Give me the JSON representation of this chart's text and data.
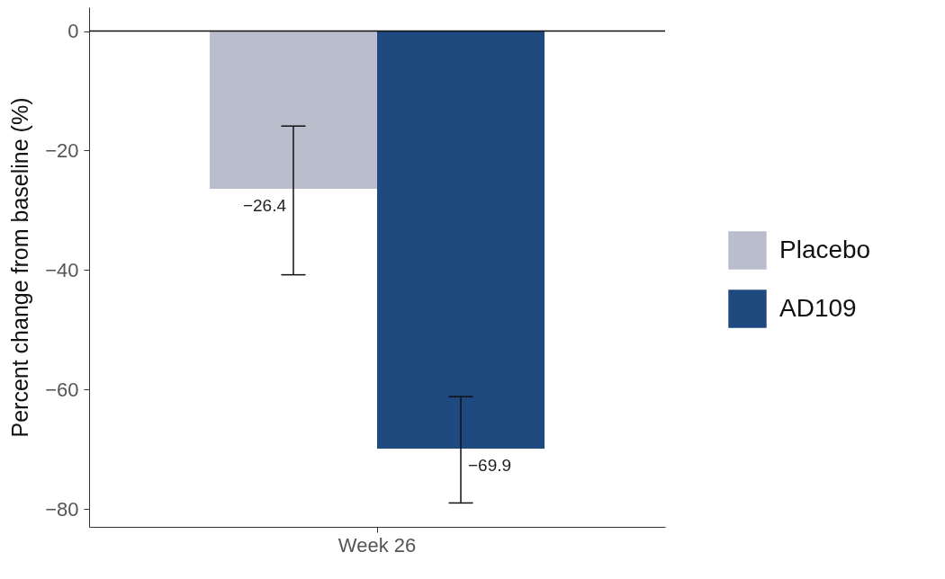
{
  "chart_data": {
    "type": "bar",
    "ylabel": "Percent change from baseline (%)",
    "categories": [
      "Week 26"
    ],
    "series": [
      {
        "name": "Placebo",
        "color": "#babdcc",
        "values": [
          -26.4
        ],
        "errors": [
          [
            -40.8,
            -15.9
          ]
        ]
      },
      {
        "name": "AD109",
        "color": "#1f4a7f",
        "values": [
          -69.9
        ],
        "errors": [
          [
            -79.0,
            -61.2
          ]
        ]
      }
    ],
    "ylim": [
      -83,
      4
    ],
    "yticks": [
      0,
      -20,
      -40,
      -60,
      -80
    ],
    "ref_lines": [
      {
        "axis": "y",
        "value": 0
      }
    ],
    "data_labels": true,
    "legend": "right",
    "grid": false
  }
}
